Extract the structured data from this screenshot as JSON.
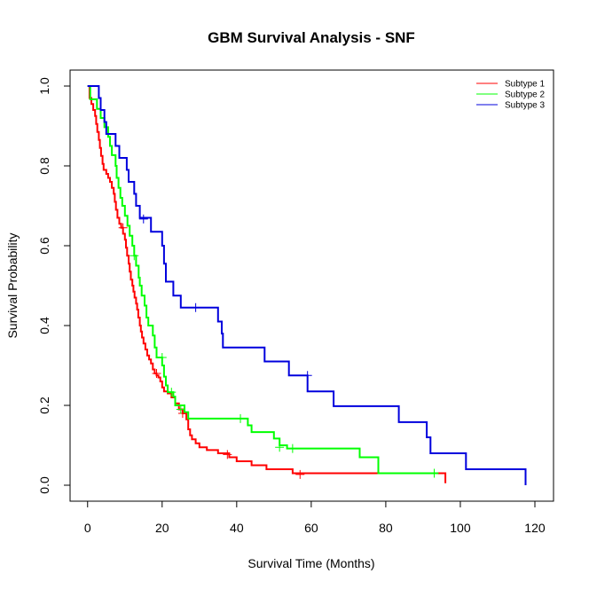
{
  "chart_data": {
    "type": "line",
    "step": true,
    "title": "GBM Survival Analysis - SNF",
    "xlabel": "Survival Time (Months)",
    "ylabel": "Survival Probability",
    "xlim": [
      -4.7,
      125
    ],
    "ylim": [
      -0.04,
      1.04
    ],
    "xticks": [
      0,
      20,
      40,
      60,
      80,
      100,
      120
    ],
    "yticks": [
      0.0,
      0.2,
      0.4,
      0.6,
      0.8,
      1.0
    ],
    "grid": false,
    "legend_position": "top-right",
    "series": [
      {
        "name": "Subtype 1",
        "color": "#ff0000",
        "points": [
          [
            0,
            1.0
          ],
          [
            0.5,
            0.97
          ],
          [
            1.0,
            0.955
          ],
          [
            1.5,
            0.94
          ],
          [
            2.0,
            0.925
          ],
          [
            2.3,
            0.905
          ],
          [
            2.6,
            0.885
          ],
          [
            3.0,
            0.865
          ],
          [
            3.3,
            0.845
          ],
          [
            3.6,
            0.825
          ],
          [
            4.0,
            0.805
          ],
          [
            4.3,
            0.79
          ],
          [
            5.0,
            0.78
          ],
          [
            5.5,
            0.77
          ],
          [
            6.0,
            0.76
          ],
          [
            6.5,
            0.745
          ],
          [
            7.0,
            0.73
          ],
          [
            7.3,
            0.71
          ],
          [
            7.6,
            0.69
          ],
          [
            8.0,
            0.67
          ],
          [
            8.5,
            0.655
          ],
          [
            9.0,
            0.645
          ],
          [
            9.5,
            0.63
          ],
          [
            10.0,
            0.615
          ],
          [
            10.3,
            0.595
          ],
          [
            10.6,
            0.575
          ],
          [
            11.0,
            0.555
          ],
          [
            11.3,
            0.535
          ],
          [
            11.6,
            0.515
          ],
          [
            12.0,
            0.5
          ],
          [
            12.3,
            0.485
          ],
          [
            12.6,
            0.47
          ],
          [
            13.0,
            0.455
          ],
          [
            13.3,
            0.44
          ],
          [
            13.6,
            0.42
          ],
          [
            14.0,
            0.4
          ],
          [
            14.3,
            0.385
          ],
          [
            14.6,
            0.37
          ],
          [
            15.0,
            0.355
          ],
          [
            15.5,
            0.34
          ],
          [
            16.0,
            0.325
          ],
          [
            16.5,
            0.315
          ],
          [
            17.0,
            0.305
          ],
          [
            17.5,
            0.29
          ],
          [
            18.0,
            0.28
          ],
          [
            18.5,
            0.275
          ],
          [
            19.0,
            0.27
          ],
          [
            19.5,
            0.26
          ],
          [
            20.0,
            0.245
          ],
          [
            20.5,
            0.235
          ],
          [
            21.5,
            0.23
          ],
          [
            22.5,
            0.22
          ],
          [
            23.5,
            0.205
          ],
          [
            24.5,
            0.19
          ],
          [
            25.5,
            0.18
          ],
          [
            26.5,
            0.165
          ],
          [
            27.0,
            0.14
          ],
          [
            27.5,
            0.125
          ],
          [
            28.0,
            0.115
          ],
          [
            29.0,
            0.105
          ],
          [
            30.0,
            0.095
          ],
          [
            32.0,
            0.088
          ],
          [
            35.0,
            0.08
          ],
          [
            38.0,
            0.07
          ],
          [
            40.0,
            0.06
          ],
          [
            44.0,
            0.05
          ],
          [
            48.0,
            0.04
          ],
          [
            55.0,
            0.03
          ],
          [
            95.0,
            0.03
          ],
          [
            96.0,
            0.005
          ]
        ],
        "censored": [
          [
            9.5,
            0.645
          ],
          [
            18.5,
            0.28
          ],
          [
            25.5,
            0.18
          ],
          [
            37.5,
            0.077
          ],
          [
            57.0,
            0.027
          ]
        ]
      },
      {
        "name": "Subtype 2",
        "color": "#00ff00",
        "points": [
          [
            0,
            1.0
          ],
          [
            0.7,
            0.967
          ],
          [
            2.5,
            0.943
          ],
          [
            3.5,
            0.92
          ],
          [
            4.5,
            0.897
          ],
          [
            5.5,
            0.873
          ],
          [
            6.0,
            0.85
          ],
          [
            6.5,
            0.827
          ],
          [
            7.5,
            0.8
          ],
          [
            7.8,
            0.77
          ],
          [
            8.3,
            0.745
          ],
          [
            8.8,
            0.72
          ],
          [
            9.3,
            0.7
          ],
          [
            10.0,
            0.675
          ],
          [
            10.7,
            0.65
          ],
          [
            11.3,
            0.625
          ],
          [
            12.0,
            0.6
          ],
          [
            12.5,
            0.575
          ],
          [
            13.0,
            0.55
          ],
          [
            13.7,
            0.52
          ],
          [
            14.0,
            0.5
          ],
          [
            14.5,
            0.475
          ],
          [
            15.3,
            0.45
          ],
          [
            15.8,
            0.42
          ],
          [
            16.3,
            0.4
          ],
          [
            17.5,
            0.375
          ],
          [
            18.0,
            0.345
          ],
          [
            18.5,
            0.32
          ],
          [
            20.0,
            0.3
          ],
          [
            20.5,
            0.272
          ],
          [
            21.0,
            0.25
          ],
          [
            21.5,
            0.233
          ],
          [
            23.0,
            0.222
          ],
          [
            23.5,
            0.2
          ],
          [
            26.0,
            0.183
          ],
          [
            27.0,
            0.167
          ],
          [
            43.0,
            0.15
          ],
          [
            44.0,
            0.133
          ],
          [
            50.0,
            0.117
          ],
          [
            51.5,
            0.1
          ],
          [
            53.5,
            0.092
          ],
          [
            73.0,
            0.07
          ],
          [
            78.0,
            0.03
          ],
          [
            94.0,
            0.03
          ]
        ],
        "censored": [
          [
            12.5,
            0.575
          ],
          [
            20.0,
            0.32
          ],
          [
            22.5,
            0.233
          ],
          [
            25.0,
            0.19
          ],
          [
            41.0,
            0.167
          ],
          [
            51.5,
            0.095
          ],
          [
            55.0,
            0.092
          ],
          [
            93.0,
            0.03
          ]
        ]
      },
      {
        "name": "Subtype 3",
        "color": "#0000dd",
        "points": [
          [
            0,
            1.0
          ],
          [
            3.0,
            0.97
          ],
          [
            3.5,
            0.94
          ],
          [
            4.5,
            0.91
          ],
          [
            5.0,
            0.88
          ],
          [
            7.5,
            0.85
          ],
          [
            8.5,
            0.82
          ],
          [
            10.5,
            0.79
          ],
          [
            11.0,
            0.76
          ],
          [
            12.5,
            0.73
          ],
          [
            13.0,
            0.7
          ],
          [
            14.0,
            0.67
          ],
          [
            17.0,
            0.635
          ],
          [
            20.0,
            0.6
          ],
          [
            20.5,
            0.555
          ],
          [
            21.0,
            0.51
          ],
          [
            23.0,
            0.475
          ],
          [
            25.0,
            0.445
          ],
          [
            35.0,
            0.41
          ],
          [
            36.0,
            0.38
          ],
          [
            36.3,
            0.345
          ],
          [
            47.5,
            0.31
          ],
          [
            54.0,
            0.275
          ],
          [
            59.0,
            0.235
          ],
          [
            66.0,
            0.198
          ],
          [
            83.5,
            0.158
          ],
          [
            91.0,
            0.12
          ],
          [
            92.0,
            0.08
          ],
          [
            101.5,
            0.04
          ],
          [
            117.5,
            0.0
          ]
        ],
        "censored": [
          [
            15.0,
            0.667
          ],
          [
            29.0,
            0.445
          ],
          [
            59.0,
            0.275
          ]
        ]
      }
    ]
  }
}
